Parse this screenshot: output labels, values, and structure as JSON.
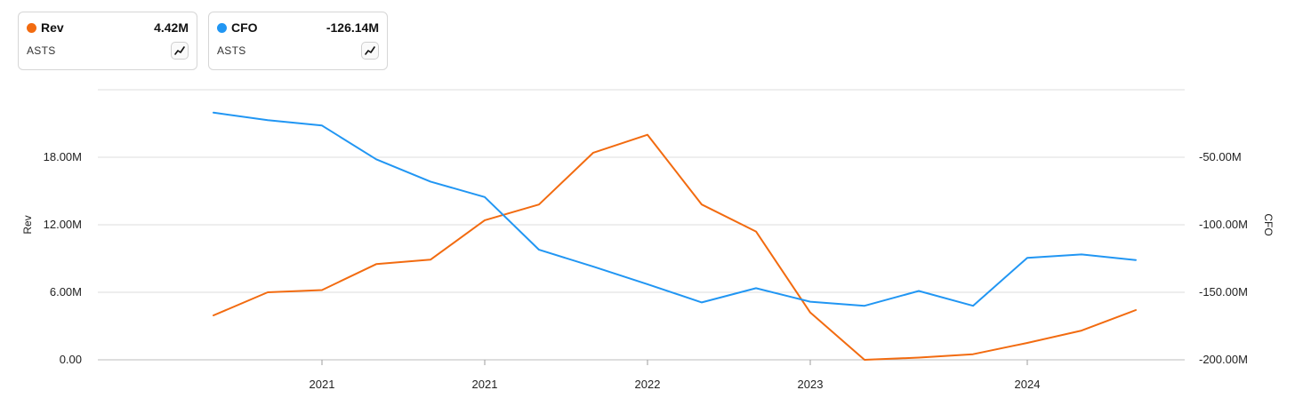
{
  "legend": [
    {
      "name": "Rev",
      "value": "4.42M",
      "ticker": "ASTS",
      "color": "#F26B10"
    },
    {
      "name": "CFO",
      "value": "-126.14M",
      "ticker": "ASTS",
      "color": "#2196F3"
    }
  ],
  "chart_data": {
    "type": "line",
    "grid": true,
    "legend_placement": "top-left",
    "x": [
      "2020-07",
      "2020-10",
      "2021-01",
      "2021-04",
      "2021-07",
      "2021-10",
      "2022-01",
      "2022-04",
      "2022-07",
      "2022-10",
      "2023-01",
      "2023-04",
      "2023-07",
      "2023-10",
      "2024-01",
      "2024-04",
      "2024-07",
      "2024-10"
    ],
    "x_tick_labels": [
      "2021",
      "2021",
      "2022",
      "2023",
      "2024"
    ],
    "y_left": {
      "label": "Rev",
      "ticks": [
        "0.00",
        "6.00M",
        "12.00M",
        "18.00M"
      ],
      "range": [
        0,
        24
      ]
    },
    "y_right": {
      "label": "CFO",
      "ticks": [
        "-200.00M",
        "-150.00M",
        "-100.00M",
        "-50.00M"
      ],
      "range": [
        -200,
        0
      ]
    },
    "series": [
      {
        "name": "Rev",
        "axis": "left",
        "color": "#F26B10",
        "values": [
          3.95,
          6.0,
          6.2,
          8.5,
          8.9,
          12.4,
          13.8,
          18.4,
          20.0,
          13.8,
          11.4,
          4.2,
          0.0,
          0.2,
          0.5,
          1.5,
          2.6,
          4.42
        ]
      },
      {
        "name": "CFO",
        "axis": "right",
        "color": "#2196F3",
        "values": [
          -17.0,
          -22.5,
          -26.5,
          -51.5,
          -68.0,
          -79.5,
          -118.5,
          -131.0,
          -144.0,
          -157.5,
          -147.0,
          -157.0,
          -160.0,
          -149.0,
          -160.0,
          -124.5,
          -122.0,
          -126.14
        ]
      }
    ]
  }
}
